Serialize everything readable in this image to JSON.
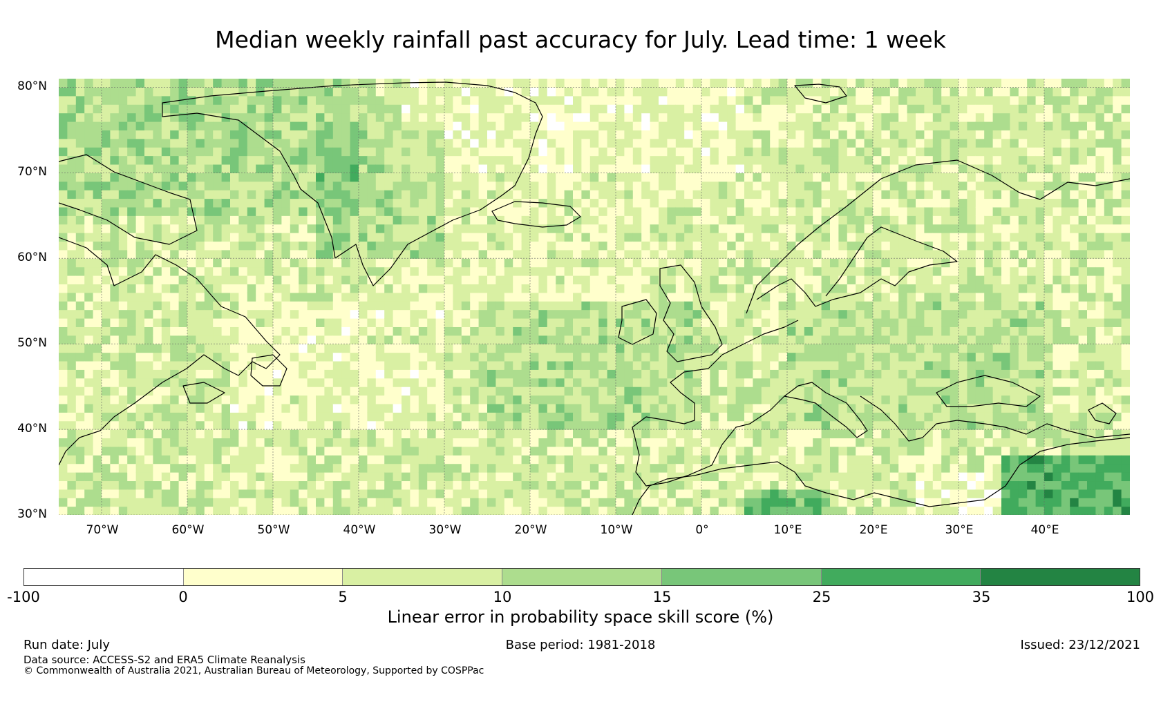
{
  "title": "Median weekly rainfall past accuracy for July. Lead time: 1 week",
  "map": {
    "lon_range": [
      -75,
      50
    ],
    "lat_range": [
      30,
      81
    ],
    "lat_labels": [
      "80°N",
      "70°N",
      "60°N",
      "50°N",
      "40°N",
      "30°N"
    ],
    "lat_values": [
      80,
      70,
      60,
      50,
      40,
      30
    ],
    "lon_labels": [
      "70°W",
      "60°W",
      "50°W",
      "40°W",
      "30°W",
      "20°W",
      "10°W",
      "0°",
      "10°E",
      "20°E",
      "30°E",
      "40°E"
    ],
    "lon_values": [
      -70,
      -60,
      -50,
      -40,
      -30,
      -20,
      -10,
      0,
      10,
      20,
      30,
      40
    ],
    "palette": [
      "#ffffff",
      "#ffffcc",
      "#d9f0a3",
      "#addd8e",
      "#78c679",
      "#41ab5d",
      "#238443"
    ]
  },
  "colorbar": {
    "bounds": [
      "-100",
      "0",
      "5",
      "10",
      "15",
      "25",
      "35",
      "100"
    ],
    "label": "Linear error in probability space skill score (%)"
  },
  "footer": {
    "run_date": "Run date: July",
    "base_period": "Base period: 1981-2018",
    "issued": "Issued: 23/12/2021",
    "data_source": "Data source: ACCESS-S2 and ERA5 Climate Reanalysis",
    "copyright": "© Commonwealth of Australia 2021, Australian Bureau of Meteorology, Supported by COSPPac"
  }
}
